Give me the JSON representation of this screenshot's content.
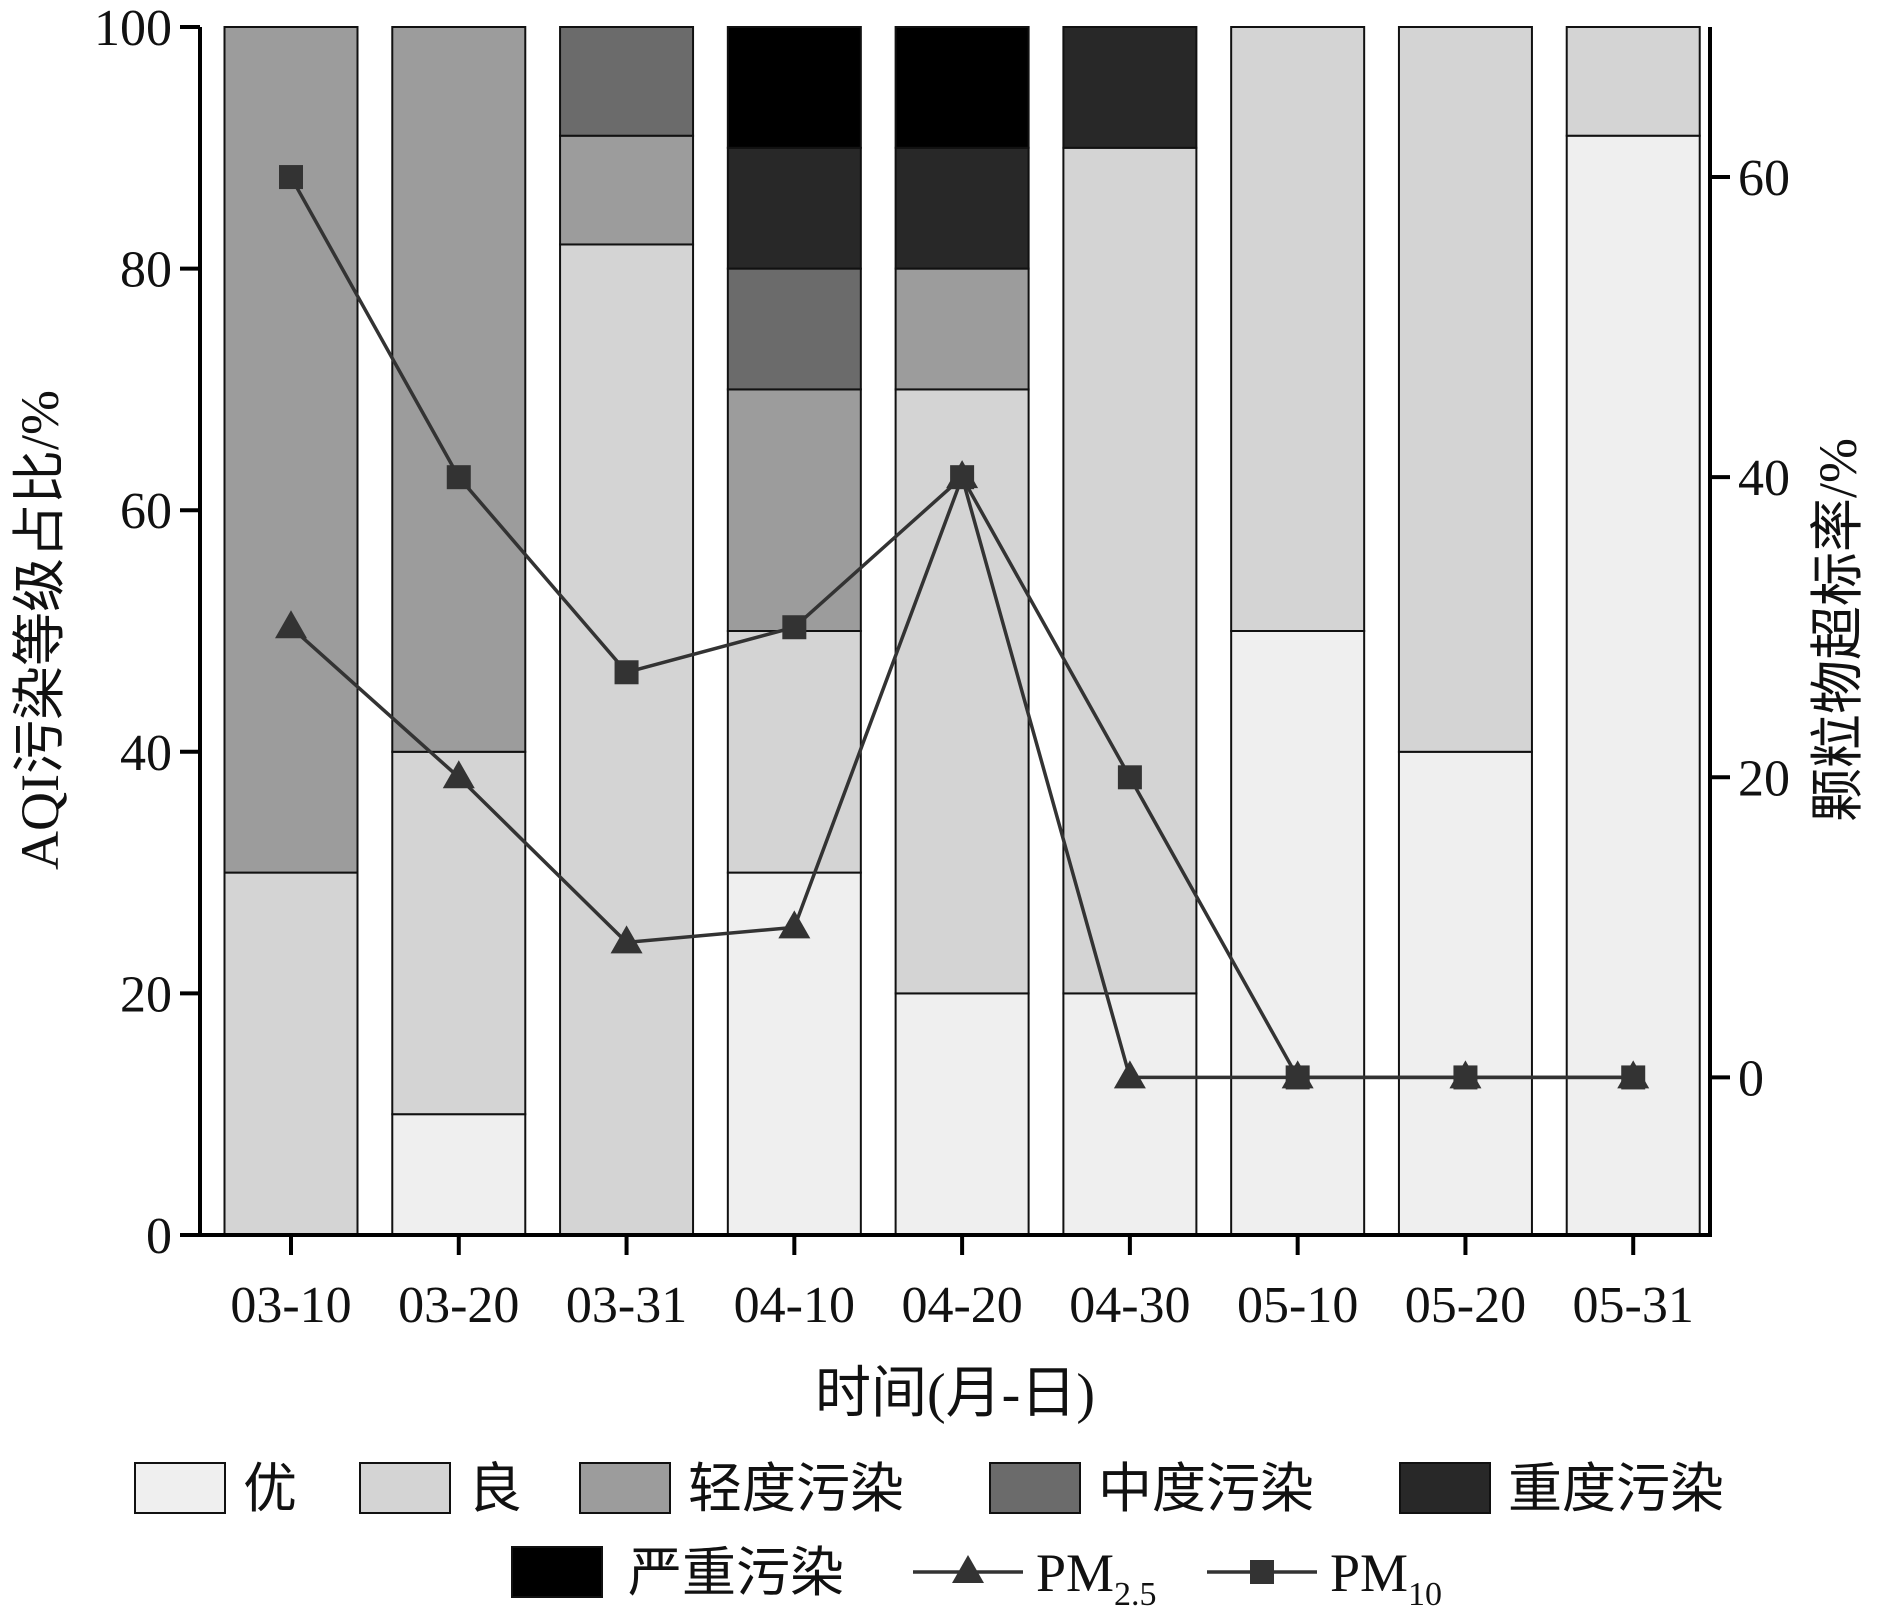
{
  "chart_data": {
    "type": "bar",
    "stacked": true,
    "categories": [
      "03-10",
      "03-20",
      "03-31",
      "04-10",
      "04-20",
      "04-30",
      "05-10",
      "05-20",
      "05-31"
    ],
    "xlabel": "时间(月-日)",
    "ylabel_left": "AQI污染等级占比/%",
    "ylabel_right": "颗粒物超标率/%",
    "ylim_left": [
      0,
      100
    ],
    "yticks_left": [
      "0",
      "20",
      "40",
      "60",
      "80",
      "100"
    ],
    "ylim_right": [
      -10.5,
      70
    ],
    "yticks_right": [
      "0",
      "20",
      "40",
      "60"
    ],
    "series": [
      {
        "name": "优",
        "color": "#efefef",
        "values": [
          0,
          10,
          0,
          30,
          20,
          20,
          50,
          40,
          91
        ]
      },
      {
        "name": "良",
        "color": "#d4d4d4",
        "values": [
          30,
          30,
          82,
          20,
          50,
          70,
          50,
          60,
          9
        ]
      },
      {
        "name": "轻度污染",
        "color": "#9c9c9c",
        "values": [
          70,
          60,
          9,
          20,
          10,
          0,
          0,
          0,
          0
        ]
      },
      {
        "name": "中度污染",
        "color": "#6b6b6b",
        "values": [
          0,
          0,
          9,
          10,
          0,
          0,
          0,
          0,
          0
        ]
      },
      {
        "name": "重度污染",
        "color": "#282828",
        "values": [
          0,
          0,
          0,
          10,
          10,
          10,
          0,
          0,
          0
        ]
      },
      {
        "name": "严重污染",
        "color": "#000000",
        "values": [
          0,
          0,
          0,
          10,
          10,
          0,
          0,
          0,
          0
        ]
      }
    ],
    "lines": [
      {
        "name": "PM2.5",
        "name_main": "PM",
        "name_sub": "2.5",
        "marker": "triangle",
        "axis": "right",
        "values": [
          30,
          20,
          9,
          10,
          40,
          0,
          0,
          0,
          0
        ]
      },
      {
        "name": "PM10",
        "name_main": "PM",
        "name_sub": "10",
        "marker": "square",
        "axis": "right",
        "values": [
          60,
          40,
          27,
          30,
          40,
          20,
          0,
          0,
          0
        ]
      }
    ],
    "grid": false,
    "legend_position": "bottom"
  }
}
